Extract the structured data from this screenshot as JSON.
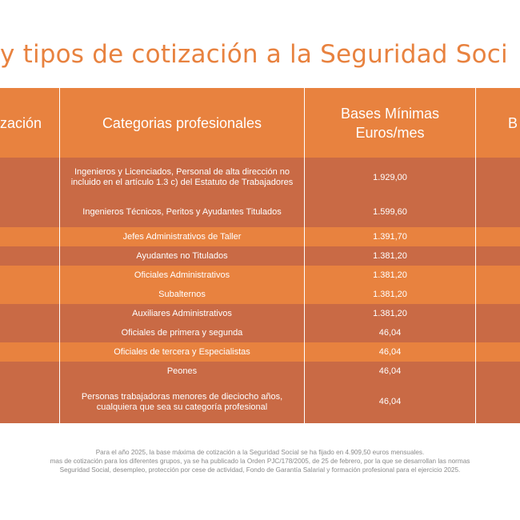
{
  "title": "y tipos de cotización a la Seguridad Soci",
  "table": {
    "headers": [
      "zación",
      "Categorias profesionales",
      "Bases Mínimas\nEuros/mes",
      "B"
    ],
    "rows": [
      {
        "category": "Ingenieros y Licenciados, Personal de alta dirección no incluido en el artículo 1.3 c) del Estatuto de Trabajadores",
        "base_min": "1.929,00"
      },
      {
        "category": "Ingenieros Técnicos, Peritos y Ayudantes Titulados",
        "base_min": "1.599,60"
      },
      {
        "category": "Jefes Administrativos de Taller",
        "base_min": "1.391,70"
      },
      {
        "category": "Ayudantes no Titulados",
        "base_min": "1.381,20"
      },
      {
        "category": "Oficiales Administrativos",
        "base_min": "1.381,20"
      },
      {
        "category": "Subalternos",
        "base_min": "1.381,20"
      },
      {
        "category": "Auxiliares Administrativos",
        "base_min": "1.381,20"
      },
      {
        "category": "Oficiales de primera y segunda",
        "base_min": "46,04"
      },
      {
        "category": "Oficiales de tercera y Especialistas",
        "base_min": "46,04"
      },
      {
        "category": "Peones",
        "base_min": "46,04"
      },
      {
        "category": "Personas trabajadoras menores de dieciocho años, cualquiera que sea su categoría profesional",
        "base_min": "46,04"
      }
    ]
  },
  "footer": {
    "line1": "Para el año 2025, la base máxima de cotización a la Seguridad Social se ha fijado en 4.909,50 euros mensuales.",
    "line2": "mas de cotización para los diferentes grupos, ya se ha publicado la Orden PJC/178/2005, de 25 de febrero, por la que se desarrollan las normas",
    "line3": "Seguridad Social, desempleo, protección por cese de actividad, Fondo de Garantía Salarial y formación profesional para el ejercicio 2025."
  },
  "colors": {
    "accent": "#e8823f",
    "row_dark": "#c96a45",
    "row_light": "#e8823f"
  }
}
